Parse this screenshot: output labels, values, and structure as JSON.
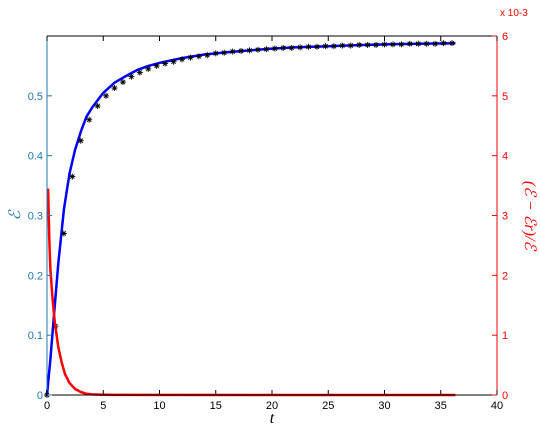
{
  "chart_data": {
    "type": "line",
    "title": "",
    "xlabel": "t",
    "ylabel_left": "ℰ",
    "ylabel_right": "(ℰ − ℰr)/ℰ",
    "right_axis_exponent": "x 10-3",
    "xlim": [
      0,
      40
    ],
    "ylim_left": [
      0,
      0.6
    ],
    "ylim_right": [
      0,
      6
    ],
    "xticks": [
      0,
      5,
      10,
      15,
      20,
      25,
      30,
      35,
      40
    ],
    "yticks_left": [
      0,
      0.1,
      0.2,
      0.3,
      0.4,
      0.5
    ],
    "yticks_right": [
      0,
      1,
      2,
      3,
      4,
      5,
      6
    ],
    "colors": {
      "left_axis": "#1f77b4",
      "right_axis": "#ff0000",
      "blue_line": "#0000ff",
      "red_line": "#ff0000",
      "markers": "#000000"
    },
    "series": [
      {
        "axis": "left",
        "style": "line",
        "color": "#0000ff",
        "x": [
          0,
          0.3,
          0.6,
          1.0,
          1.5,
          2.0,
          2.5,
          3.0,
          3.5,
          4.0,
          5.0,
          6.0,
          7.0,
          8.0,
          9.0,
          10,
          12,
          14,
          16,
          18,
          20,
          22,
          25,
          28,
          30,
          33,
          36.3
        ],
        "y": [
          0,
          0.06,
          0.13,
          0.22,
          0.31,
          0.37,
          0.41,
          0.44,
          0.465,
          0.48,
          0.505,
          0.522,
          0.533,
          0.543,
          0.55,
          0.555,
          0.563,
          0.569,
          0.573,
          0.576,
          0.579,
          0.581,
          0.583,
          0.585,
          0.586,
          0.587,
          0.588
        ]
      },
      {
        "axis": "left",
        "style": "markers",
        "marker": "*",
        "color": "#000000",
        "x": [
          0,
          0.75,
          1.5,
          2.25,
          3.0,
          3.75,
          4.5,
          5.25,
          6.0,
          6.75,
          7.5,
          8.25,
          9.0,
          9.75,
          10.5,
          11.25,
          12.0,
          12.75,
          13.5,
          14.25,
          15.0,
          15.75,
          16.5,
          17.25,
          18.0,
          18.75,
          19.5,
          20.25,
          21.0,
          21.75,
          22.5,
          23.25,
          24.0,
          24.75,
          25.5,
          26.25,
          27.0,
          27.75,
          28.5,
          29.25,
          30.0,
          30.75,
          31.5,
          32.25,
          33.0,
          33.75,
          34.5,
          35.25,
          36.0
        ],
        "y": [
          0,
          0.115,
          0.27,
          0.365,
          0.425,
          0.46,
          0.483,
          0.5,
          0.513,
          0.523,
          0.532,
          0.539,
          0.545,
          0.55,
          0.554,
          0.557,
          0.561,
          0.564,
          0.566,
          0.568,
          0.571,
          0.572,
          0.574,
          0.575,
          0.576,
          0.577,
          0.578,
          0.579,
          0.58,
          0.58,
          0.581,
          0.582,
          0.582,
          0.583,
          0.583,
          0.584,
          0.584,
          0.585,
          0.585,
          0.585,
          0.586,
          0.586,
          0.586,
          0.587,
          0.587,
          0.587,
          0.587,
          0.588,
          0.588
        ]
      },
      {
        "axis": "right",
        "style": "line",
        "color": "#ff0000",
        "x": [
          0.1,
          0.2,
          0.3,
          0.5,
          0.7,
          1.0,
          1.3,
          1.6,
          2.0,
          2.5,
          3.0,
          3.5,
          4.0,
          5.0,
          6.0,
          36.3
        ],
        "y": [
          3.45,
          2.6,
          2.1,
          1.6,
          1.2,
          0.8,
          0.55,
          0.35,
          0.2,
          0.1,
          0.05,
          0.02,
          0.01,
          0.005,
          0.002,
          0.0
        ]
      }
    ]
  }
}
